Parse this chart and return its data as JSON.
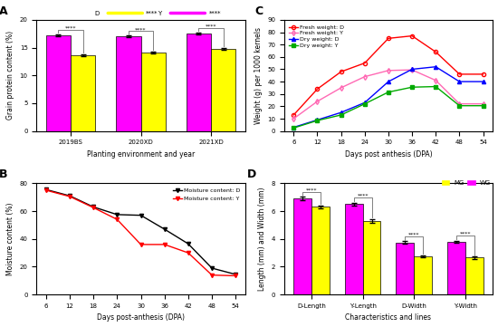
{
  "A": {
    "categories": [
      "2019BS",
      "2020XD",
      "2021XD"
    ],
    "D_values": [
      17.2,
      17.0,
      17.6
    ],
    "Y_values": [
      13.6,
      14.1,
      14.8
    ],
    "D_color": "#FF00FF",
    "Y_color": "#FFFF00",
    "ylabel": "Grain protein content (%)",
    "xlabel": "Planting environment and year",
    "ylim": [
      0,
      20
    ],
    "yticks": [
      0,
      5,
      10,
      15,
      20
    ],
    "significance": "****",
    "error_D": [
      0.15,
      0.15,
      0.15
    ],
    "error_Y": [
      0.15,
      0.15,
      0.15
    ]
  },
  "B": {
    "x": [
      6,
      12,
      18,
      24,
      30,
      36,
      42,
      48,
      54
    ],
    "D_values": [
      75.5,
      71.0,
      63.0,
      57.5,
      57.0,
      47.0,
      36.5,
      19.0,
      14.5
    ],
    "Y_values": [
      75.0,
      70.5,
      62.5,
      54.0,
      36.0,
      36.0,
      30.0,
      14.0,
      13.5
    ],
    "D_color": "#000000",
    "Y_color": "#FF0000",
    "ylabel": "Moisture content (%)",
    "xlabel": "Days post-anthesis (DPA)",
    "ylim": [
      0,
      80
    ],
    "yticks": [
      0,
      20,
      40,
      60,
      80
    ]
  },
  "C": {
    "x": [
      6,
      12,
      18,
      24,
      30,
      36,
      42,
      48,
      54
    ],
    "FW_D": [
      13.0,
      34.0,
      48.0,
      55.0,
      75.0,
      77.0,
      64.0,
      46.0,
      46.0
    ],
    "FW_Y": [
      10.0,
      24.0,
      35.0,
      44.0,
      49.0,
      49.5,
      41.0,
      22.0,
      22.0
    ],
    "DW_D": [
      3.0,
      9.0,
      15.0,
      23.0,
      40.0,
      50.0,
      52.0,
      40.0,
      40.0
    ],
    "DW_Y": [
      2.5,
      8.5,
      13.0,
      22.0,
      31.5,
      35.5,
      36.0,
      20.5,
      20.5
    ],
    "FW_D_color": "#FF0000",
    "FW_Y_color": "#FF69B4",
    "DW_D_color": "#0000FF",
    "DW_Y_color": "#00AA00",
    "ylabel": "Weight (g) per 1000 kernels",
    "xlabel": "Days post anthesis (DPA)",
    "ylim": [
      0,
      90
    ],
    "yticks": [
      0,
      10,
      20,
      30,
      40,
      50,
      60,
      70,
      80,
      90
    ]
  },
  "D": {
    "categories": [
      "D-Length",
      "Y-Length",
      "D-Width",
      "Y-Width"
    ],
    "WG_values": [
      6.9,
      6.5,
      3.75,
      3.8
    ],
    "MG_values": [
      6.3,
      5.3,
      2.75,
      2.65
    ],
    "MG_color": "#FFFF00",
    "WG_color": "#FF00FF",
    "ylabel": "Length (mm) and Width (mm)",
    "xlabel": "Characteristics and lines",
    "ylim": [
      0,
      8
    ],
    "yticks": [
      0,
      2,
      4,
      6,
      8
    ],
    "significance": "****",
    "error_WG": [
      0.12,
      0.12,
      0.08,
      0.08
    ],
    "error_MG": [
      0.12,
      0.12,
      0.08,
      0.08
    ]
  }
}
